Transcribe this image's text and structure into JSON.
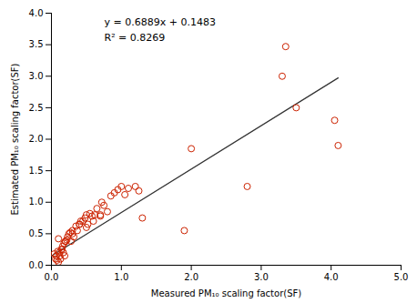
{
  "chart_data": {
    "type": "scatter",
    "x": [
      0.04,
      0.06,
      0.07,
      0.08,
      0.09,
      0.1,
      0.11,
      0.12,
      0.13,
      0.14,
      0.15,
      0.16,
      0.17,
      0.18,
      0.19,
      0.2,
      0.22,
      0.23,
      0.25,
      0.27,
      0.28,
      0.3,
      0.32,
      0.35,
      0.37,
      0.4,
      0.42,
      0.45,
      0.48,
      0.5,
      0.52,
      0.55,
      0.58,
      0.62,
      0.65,
      0.7,
      0.72,
      0.75,
      0.8,
      0.85,
      0.9,
      0.95,
      1.0,
      1.05,
      1.1,
      1.2,
      1.25,
      1.3,
      1.9,
      2.0,
      2.8,
      3.3,
      3.35,
      3.5,
      4.05,
      4.1,
      0.1,
      0.2,
      0.3,
      0.4,
      0.5,
      0.6,
      0.7
    ],
    "values": [
      0.18,
      0.1,
      0.15,
      0.08,
      0.22,
      0.05,
      0.2,
      0.15,
      0.1,
      0.25,
      0.25,
      0.3,
      0.2,
      0.35,
      0.15,
      0.38,
      0.4,
      0.45,
      0.5,
      0.52,
      0.38,
      0.55,
      0.45,
      0.62,
      0.55,
      0.65,
      0.7,
      0.7,
      0.75,
      0.8,
      0.65,
      0.82,
      0.78,
      0.8,
      0.9,
      0.8,
      1.0,
      0.95,
      0.85,
      1.1,
      1.15,
      1.2,
      1.25,
      1.12,
      1.22,
      1.25,
      1.18,
      0.75,
      0.55,
      1.85,
      1.25,
      3.0,
      3.47,
      2.5,
      2.3,
      1.9,
      0.42,
      0.38,
      0.5,
      0.65,
      0.6,
      0.7,
      0.78
    ],
    "color": "#cc2200",
    "marker": "circle",
    "fit_line": {
      "x": [
        0.0,
        4.1
      ],
      "values": [
        0.1483,
        2.97279
      ],
      "color": "#333333"
    },
    "annotations": [
      "y = 0.6889x + 0.1483",
      "R² = 0.8269"
    ],
    "xlabel": "Measured PM₁₀ scaling factor(SF)",
    "ylabel": "Estimated PM₁₀ scaling factor(SF)",
    "xlim": [
      0.0,
      5.0
    ],
    "ylim": [
      0.0,
      4.0
    ],
    "xticks": [
      {
        "value": 0,
        "label": "0.0"
      },
      {
        "value": 1,
        "label": "1.0"
      },
      {
        "value": 2,
        "label": "2.0"
      },
      {
        "value": 3,
        "label": "3.0"
      },
      {
        "value": 4,
        "label": "4.0"
      },
      {
        "value": 5,
        "label": "5.0"
      }
    ],
    "yticks": [
      {
        "value": 0,
        "label": "0.0"
      },
      0.5,
      {
        "value": 1,
        "label": "1.0"
      },
      1.5,
      {
        "value": 2,
        "label": "2.0"
      },
      2.5,
      {
        "value": 3,
        "label": "3.0"
      },
      3.5,
      {
        "value": 4,
        "label": "4.0"
      }
    ],
    "grid": false
  }
}
